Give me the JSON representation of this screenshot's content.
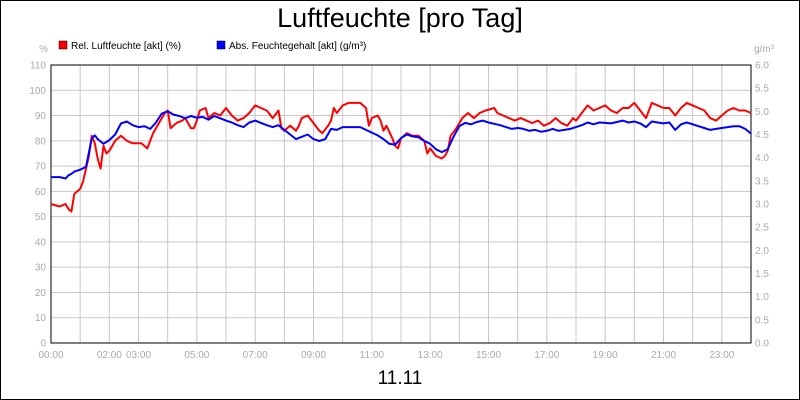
{
  "chart_data": {
    "type": "line",
    "title": "Luftfeuchte [pro Tag]",
    "xlabel": "11.11",
    "y_left_unit": "%",
    "y_right_unit": "g/m³",
    "y_left_lim": [
      0,
      110
    ],
    "y_right_lim": [
      0.0,
      6.0
    ],
    "y_left_ticks": [
      "0",
      "10",
      "20",
      "30",
      "40",
      "50",
      "60",
      "70",
      "80",
      "90",
      "100",
      "110"
    ],
    "y_right_ticks": [
      "0.0",
      "0.5",
      "1.0",
      "1.5",
      "2.0",
      "2.5",
      "3.0",
      "3.5",
      "4.0",
      "4.5",
      "5.0",
      "5.5",
      "6.0"
    ],
    "x_lim": [
      0,
      24
    ],
    "x_tick_labels": [
      {
        "hour": 0,
        "label": "00:00"
      },
      {
        "hour": 2,
        "label": "02:00"
      },
      {
        "hour": 3,
        "label": "03:00"
      },
      {
        "hour": 5,
        "label": "05:00"
      },
      {
        "hour": 7,
        "label": "07:00"
      },
      {
        "hour": 9,
        "label": "09:00"
      },
      {
        "hour": 11,
        "label": "11:00"
      },
      {
        "hour": 13,
        "label": "13:00"
      },
      {
        "hour": 15,
        "label": "15:00"
      },
      {
        "hour": 17,
        "label": "17:00"
      },
      {
        "hour": 19,
        "label": "19:00"
      },
      {
        "hour": 21,
        "label": "21:00"
      },
      {
        "hour": 23,
        "label": "23:00"
      }
    ],
    "grid": true,
    "legend_position": "top-left",
    "series": [
      {
        "name": "Rel. Luftfeuchte [akt] (%)",
        "axis": "left",
        "color": "#ff0000",
        "points": [
          [
            0.0,
            55
          ],
          [
            0.3,
            54
          ],
          [
            0.5,
            55
          ],
          [
            0.6,
            53
          ],
          [
            0.7,
            52
          ],
          [
            0.8,
            59
          ],
          [
            1.0,
            61
          ],
          [
            1.1,
            64
          ],
          [
            1.3,
            74
          ],
          [
            1.4,
            82
          ],
          [
            1.5,
            79
          ],
          [
            1.6,
            73
          ],
          [
            1.7,
            69
          ],
          [
            1.8,
            78
          ],
          [
            1.9,
            75
          ],
          [
            2.0,
            76
          ],
          [
            2.2,
            80
          ],
          [
            2.4,
            82
          ],
          [
            2.6,
            80
          ],
          [
            2.8,
            79
          ],
          [
            3.1,
            79
          ],
          [
            3.3,
            77
          ],
          [
            3.5,
            83
          ],
          [
            3.7,
            87
          ],
          [
            3.9,
            91
          ],
          [
            4.0,
            92
          ],
          [
            4.1,
            85
          ],
          [
            4.3,
            87
          ],
          [
            4.5,
            88
          ],
          [
            4.6,
            89
          ],
          [
            4.8,
            85
          ],
          [
            4.9,
            85
          ],
          [
            5.0,
            88
          ],
          [
            5.1,
            92
          ],
          [
            5.3,
            93
          ],
          [
            5.4,
            89
          ],
          [
            5.6,
            91
          ],
          [
            5.8,
            90
          ],
          [
            6.0,
            93
          ],
          [
            6.2,
            90
          ],
          [
            6.4,
            88
          ],
          [
            6.6,
            89
          ],
          [
            6.8,
            91
          ],
          [
            7.0,
            94
          ],
          [
            7.2,
            93
          ],
          [
            7.4,
            92
          ],
          [
            7.6,
            89
          ],
          [
            7.8,
            92
          ],
          [
            7.9,
            85
          ],
          [
            8.0,
            84
          ],
          [
            8.2,
            86
          ],
          [
            8.4,
            84
          ],
          [
            8.5,
            86
          ],
          [
            8.6,
            89
          ],
          [
            8.8,
            90
          ],
          [
            9.0,
            87
          ],
          [
            9.2,
            84
          ],
          [
            9.3,
            83
          ],
          [
            9.5,
            86
          ],
          [
            9.6,
            88
          ],
          [
            9.7,
            93
          ],
          [
            9.8,
            91
          ],
          [
            10.0,
            94
          ],
          [
            10.2,
            95
          ],
          [
            10.6,
            95
          ],
          [
            10.8,
            93
          ],
          [
            10.9,
            86
          ],
          [
            11.0,
            89
          ],
          [
            11.2,
            90
          ],
          [
            11.3,
            88
          ],
          [
            11.4,
            84
          ],
          [
            11.5,
            86
          ],
          [
            11.7,
            81
          ],
          [
            11.8,
            78
          ],
          [
            11.9,
            77
          ],
          [
            12.0,
            81
          ],
          [
            12.2,
            83
          ],
          [
            12.4,
            82
          ],
          [
            12.6,
            82
          ],
          [
            12.8,
            80
          ],
          [
            12.9,
            75
          ],
          [
            13.0,
            77
          ],
          [
            13.2,
            74
          ],
          [
            13.4,
            73
          ],
          [
            13.5,
            74
          ],
          [
            13.6,
            76
          ],
          [
            13.7,
            82
          ],
          [
            13.9,
            85
          ],
          [
            14.1,
            89
          ],
          [
            14.3,
            91
          ],
          [
            14.5,
            89
          ],
          [
            14.7,
            91
          ],
          [
            14.9,
            92
          ],
          [
            15.2,
            93
          ],
          [
            15.3,
            91
          ],
          [
            15.5,
            90
          ],
          [
            15.7,
            89
          ],
          [
            15.9,
            88
          ],
          [
            16.1,
            89
          ],
          [
            16.3,
            88
          ],
          [
            16.5,
            87
          ],
          [
            16.7,
            88
          ],
          [
            16.9,
            86
          ],
          [
            17.1,
            87
          ],
          [
            17.3,
            89
          ],
          [
            17.5,
            87
          ],
          [
            17.7,
            86
          ],
          [
            17.9,
            89
          ],
          [
            18.0,
            88
          ],
          [
            18.2,
            91
          ],
          [
            18.4,
            94
          ],
          [
            18.6,
            92
          ],
          [
            18.8,
            93
          ],
          [
            19.0,
            94
          ],
          [
            19.2,
            92
          ],
          [
            19.4,
            91
          ],
          [
            19.6,
            93
          ],
          [
            19.8,
            93
          ],
          [
            20.0,
            95
          ],
          [
            20.2,
            92
          ],
          [
            20.4,
            89
          ],
          [
            20.6,
            95
          ],
          [
            20.8,
            94
          ],
          [
            21.0,
            93
          ],
          [
            21.2,
            93
          ],
          [
            21.4,
            90
          ],
          [
            21.6,
            93
          ],
          [
            21.8,
            95
          ],
          [
            22.0,
            94
          ],
          [
            22.2,
            93
          ],
          [
            22.4,
            92
          ],
          [
            22.6,
            89
          ],
          [
            22.8,
            88
          ],
          [
            23.0,
            90
          ],
          [
            23.2,
            92
          ],
          [
            23.4,
            93
          ],
          [
            23.6,
            92
          ],
          [
            23.8,
            92
          ],
          [
            24.0,
            91
          ]
        ]
      },
      {
        "name": "Abs. Feuchtegehalt [akt] (g/m³)",
        "axis": "right",
        "color": "#0000ff",
        "points": [
          [
            0.0,
            3.58
          ],
          [
            0.3,
            3.58
          ],
          [
            0.5,
            3.55
          ],
          [
            0.6,
            3.62
          ],
          [
            0.7,
            3.65
          ],
          [
            0.8,
            3.7
          ],
          [
            1.0,
            3.74
          ],
          [
            1.2,
            3.8
          ],
          [
            1.4,
            4.42
          ],
          [
            1.5,
            4.48
          ],
          [
            1.6,
            4.4
          ],
          [
            1.8,
            4.3
          ],
          [
            2.0,
            4.38
          ],
          [
            2.2,
            4.5
          ],
          [
            2.4,
            4.74
          ],
          [
            2.6,
            4.78
          ],
          [
            2.8,
            4.7
          ],
          [
            3.0,
            4.66
          ],
          [
            3.2,
            4.68
          ],
          [
            3.4,
            4.62
          ],
          [
            3.6,
            4.76
          ],
          [
            3.8,
            4.95
          ],
          [
            4.0,
            5.0
          ],
          [
            4.2,
            4.93
          ],
          [
            4.4,
            4.9
          ],
          [
            4.6,
            4.85
          ],
          [
            4.8,
            4.9
          ],
          [
            5.0,
            4.86
          ],
          [
            5.2,
            4.88
          ],
          [
            5.4,
            4.82
          ],
          [
            5.6,
            4.9
          ],
          [
            5.8,
            4.85
          ],
          [
            6.0,
            4.8
          ],
          [
            6.2,
            4.76
          ],
          [
            6.4,
            4.7
          ],
          [
            6.6,
            4.66
          ],
          [
            6.8,
            4.76
          ],
          [
            7.0,
            4.8
          ],
          [
            7.2,
            4.75
          ],
          [
            7.4,
            4.7
          ],
          [
            7.6,
            4.66
          ],
          [
            7.8,
            4.7
          ],
          [
            8.0,
            4.6
          ],
          [
            8.2,
            4.5
          ],
          [
            8.4,
            4.4
          ],
          [
            8.6,
            4.45
          ],
          [
            8.8,
            4.5
          ],
          [
            9.0,
            4.4
          ],
          [
            9.2,
            4.36
          ],
          [
            9.4,
            4.4
          ],
          [
            9.6,
            4.62
          ],
          [
            9.8,
            4.6
          ],
          [
            10.0,
            4.66
          ],
          [
            10.2,
            4.66
          ],
          [
            10.6,
            4.66
          ],
          [
            10.8,
            4.6
          ],
          [
            11.0,
            4.54
          ],
          [
            11.2,
            4.48
          ],
          [
            11.4,
            4.4
          ],
          [
            11.6,
            4.3
          ],
          [
            11.8,
            4.28
          ],
          [
            12.0,
            4.42
          ],
          [
            12.2,
            4.5
          ],
          [
            12.4,
            4.46
          ],
          [
            12.6,
            4.44
          ],
          [
            12.8,
            4.36
          ],
          [
            13.0,
            4.3
          ],
          [
            13.2,
            4.18
          ],
          [
            13.4,
            4.12
          ],
          [
            13.6,
            4.18
          ],
          [
            13.8,
            4.45
          ],
          [
            14.0,
            4.68
          ],
          [
            14.2,
            4.75
          ],
          [
            14.4,
            4.72
          ],
          [
            14.6,
            4.77
          ],
          [
            14.8,
            4.8
          ],
          [
            15.0,
            4.76
          ],
          [
            15.2,
            4.73
          ],
          [
            15.4,
            4.7
          ],
          [
            15.6,
            4.66
          ],
          [
            15.8,
            4.62
          ],
          [
            16.0,
            4.64
          ],
          [
            16.2,
            4.62
          ],
          [
            16.4,
            4.58
          ],
          [
            16.6,
            4.6
          ],
          [
            16.8,
            4.56
          ],
          [
            17.0,
            4.58
          ],
          [
            17.2,
            4.62
          ],
          [
            17.4,
            4.58
          ],
          [
            17.6,
            4.6
          ],
          [
            17.8,
            4.62
          ],
          [
            18.0,
            4.66
          ],
          [
            18.2,
            4.7
          ],
          [
            18.4,
            4.76
          ],
          [
            18.6,
            4.72
          ],
          [
            18.8,
            4.76
          ],
          [
            19.0,
            4.75
          ],
          [
            19.2,
            4.74
          ],
          [
            19.4,
            4.77
          ],
          [
            19.6,
            4.8
          ],
          [
            19.8,
            4.76
          ],
          [
            20.0,
            4.78
          ],
          [
            20.2,
            4.74
          ],
          [
            20.4,
            4.66
          ],
          [
            20.6,
            4.78
          ],
          [
            20.8,
            4.76
          ],
          [
            21.0,
            4.74
          ],
          [
            21.2,
            4.76
          ],
          [
            21.4,
            4.6
          ],
          [
            21.6,
            4.72
          ],
          [
            21.8,
            4.76
          ],
          [
            22.0,
            4.72
          ],
          [
            22.2,
            4.68
          ],
          [
            22.4,
            4.64
          ],
          [
            22.6,
            4.6
          ],
          [
            22.8,
            4.62
          ],
          [
            23.0,
            4.64
          ],
          [
            23.2,
            4.66
          ],
          [
            23.4,
            4.68
          ],
          [
            23.6,
            4.68
          ],
          [
            23.8,
            4.62
          ],
          [
            24.0,
            4.52
          ]
        ]
      }
    ]
  }
}
